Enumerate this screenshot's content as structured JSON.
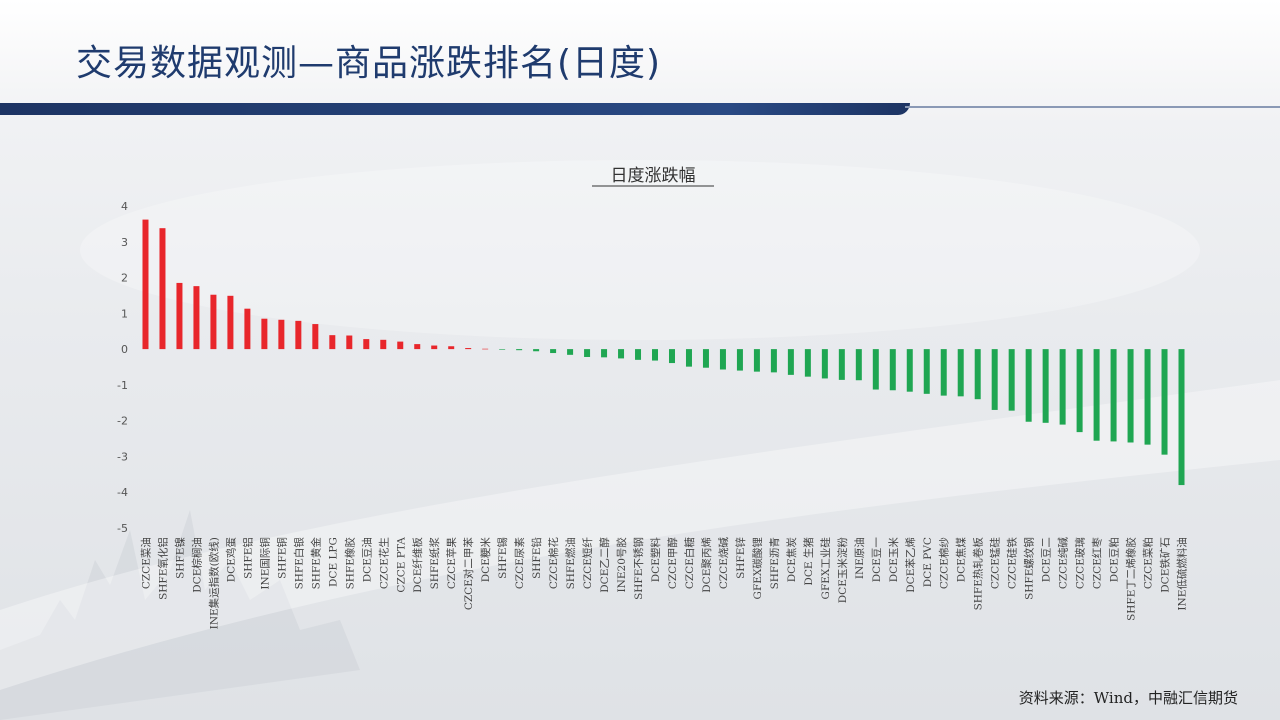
{
  "page": {
    "title": "交易数据观测—商品涨跌排名(日度)",
    "source": "资料来源：Wind，中融汇信期货"
  },
  "colors": {
    "positive": "#e8262b",
    "negative": "#1fa652",
    "title": "#1f3b6e",
    "header_rule": "#1d3463"
  },
  "chart_data": {
    "type": "bar",
    "title": "日度涨跌幅",
    "xlabel": "",
    "ylabel": "",
    "ylim": [
      -5,
      4
    ],
    "yticks": [
      4,
      3,
      2,
      1,
      0,
      -1,
      -2,
      -3,
      -4,
      -5
    ],
    "grid": false,
    "legend": "none",
    "categories": [
      "CZCE菜油",
      "SHFE氧化铝",
      "SHFE镍",
      "DCE棕榈油",
      "INE集运指数(欧线)",
      "DCE鸡蛋",
      "SHFE铝",
      "INE国际铜",
      "SHFE铜",
      "SHFE白银",
      "SHFE黄金",
      "DCE LPG",
      "SHFE橡胶",
      "DCE豆油",
      "CZCE花生",
      "CZCE PTA",
      "DCE纤维板",
      "SHFE纸浆",
      "CZCE苹果",
      "CZCE对二甲苯",
      "DCE粳米",
      "SHFE锡",
      "CZCE尿素",
      "SHFE铅",
      "CZCE棉花",
      "SHFE燃油",
      "CZCE短纤",
      "DCE乙二醇",
      "INE20号胶",
      "SHFE不锈钢",
      "DCE塑料",
      "CZCE甲醇",
      "CZCE白糖",
      "DCE聚丙烯",
      "CZCE烧碱",
      "SHFE锌",
      "GFEX碳酸锂",
      "SHFE沥青",
      "DCE焦炭",
      "DCE 生猪",
      "GFEX工业硅",
      "DCE玉米淀粉",
      "INE原油",
      "DCE豆一",
      "DCE玉米",
      "DCE苯乙烯",
      "DCE PVC",
      "CZCE棉纱",
      "DCE焦煤",
      "SHFE热轧卷板",
      "CZCE锰硅",
      "CZCE硅铁",
      "SHFE螺纹钢",
      "DCE豆二",
      "CZCE纯碱",
      "CZCE玻璃",
      "CZCE红枣",
      "DCE豆粕",
      "SHFE丁二烯橡胶",
      "CZCE菜粕",
      "DCE铁矿石",
      "INE低硫燃料油"
    ],
    "values": [
      3.62,
      3.38,
      1.85,
      1.76,
      1.52,
      1.49,
      1.13,
      0.85,
      0.82,
      0.79,
      0.7,
      0.39,
      0.38,
      0.28,
      0.26,
      0.21,
      0.14,
      0.1,
      0.08,
      0.03,
      0.01,
      -0.01,
      -0.03,
      -0.06,
      -0.11,
      -0.16,
      -0.22,
      -0.23,
      -0.26,
      -0.3,
      -0.32,
      -0.39,
      -0.49,
      -0.52,
      -0.57,
      -0.6,
      -0.63,
      -0.65,
      -0.72,
      -0.77,
      -0.82,
      -0.86,
      -0.87,
      -1.13,
      -1.15,
      -1.19,
      -1.25,
      -1.3,
      -1.32,
      -1.4,
      -1.7,
      -1.72,
      -2.03,
      -2.06,
      -2.11,
      -2.32,
      -2.56,
      -2.58,
      -2.61,
      -2.67,
      -2.95,
      -3.8
    ]
  }
}
